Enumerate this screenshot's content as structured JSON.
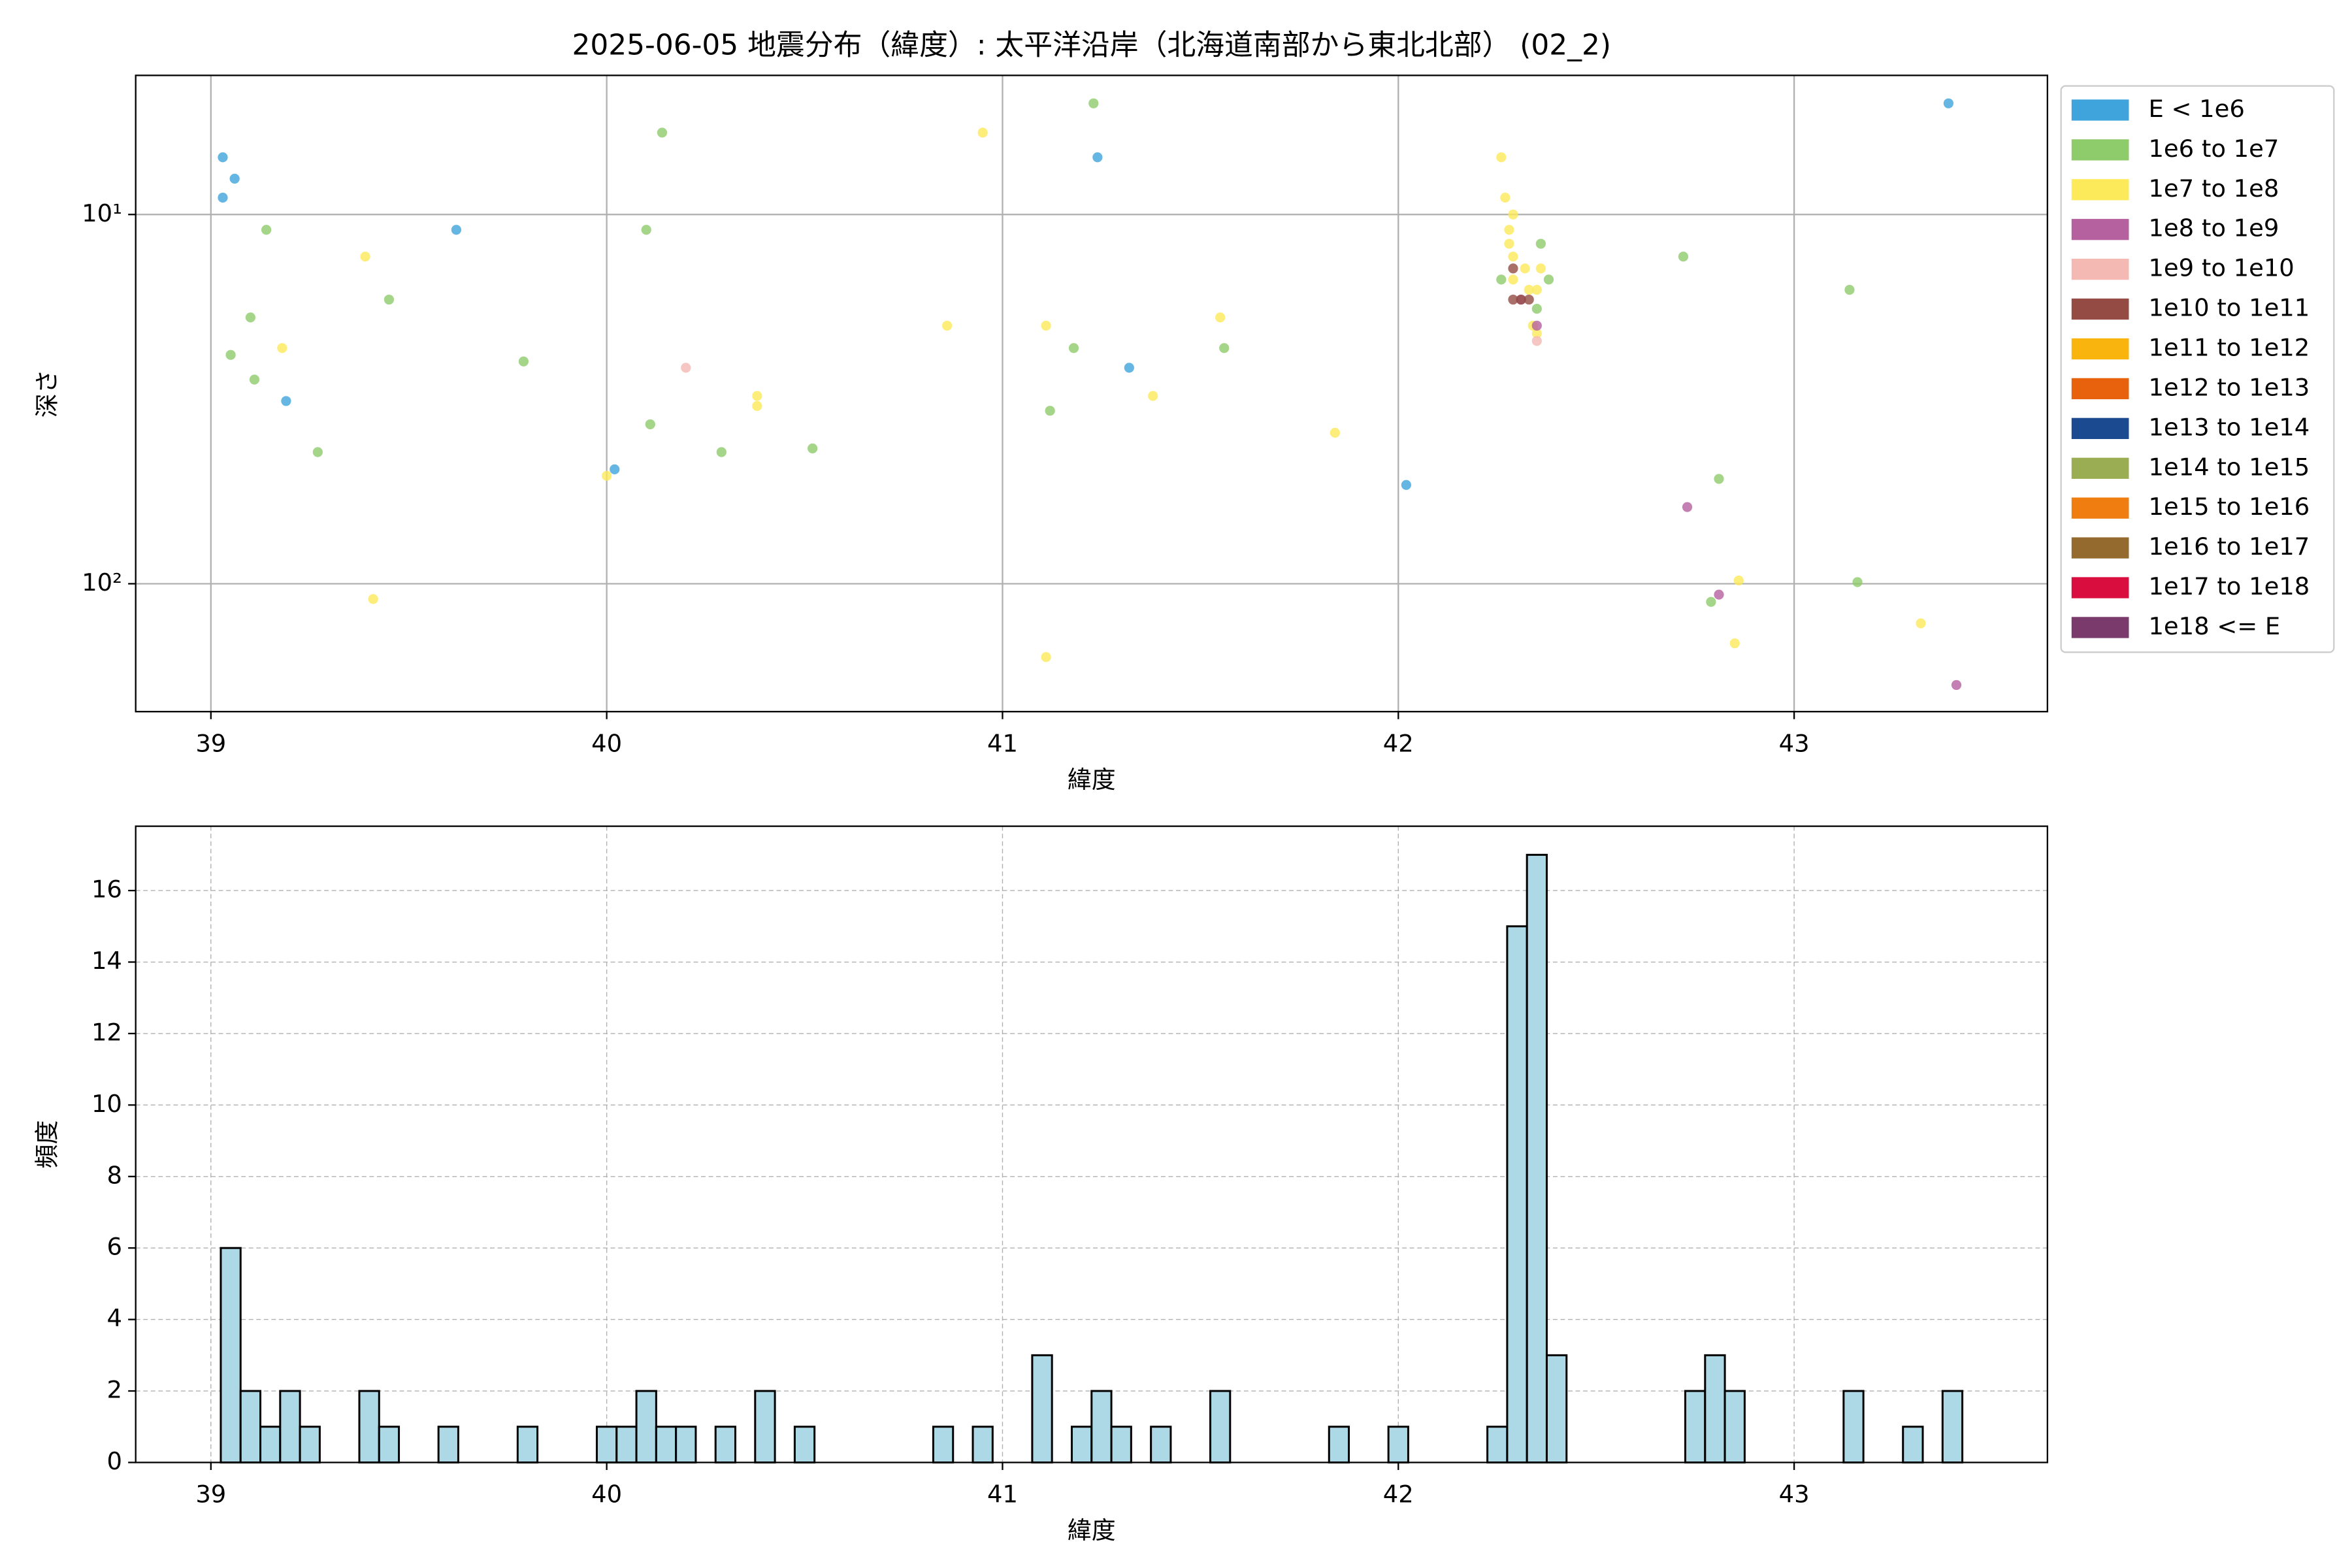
{
  "chart_data": [
    {
      "type": "scatter",
      "title": "2025-06-05 地震分布（緯度）: 太平洋沿岸（北海道南部から東北北部） (02_2)",
      "x_label": "緯度",
      "y_label": "深さ",
      "xlim": [
        38.81,
        43.64
      ],
      "xticks": [
        39,
        40,
        41,
        42,
        43
      ],
      "ylim": [
        4.2,
        222
      ],
      "yscale": "log",
      "invert_y": true,
      "yticks": [
        {
          "value": 10,
          "label": "10¹"
        },
        {
          "value": 100,
          "label": "10²"
        }
      ],
      "grid": true,
      "grid_linestyle": "solid",
      "legend": "outside-right",
      "series": [
        {
          "name": "E < 1e6",
          "color": "#3fa4dc",
          "x": [
            39.03,
            39.03,
            39.06,
            39.62,
            39.19,
            40.02,
            41.24,
            41.32,
            42.02,
            43.39
          ],
          "values": [
            7.0,
            9.0,
            8.0,
            11,
            32,
            49,
            7.0,
            26,
            54,
            5.0
          ]
        },
        {
          "name": "1e6 to 1e7",
          "color": "#8ecb6a",
          "x": [
            41.23,
            40.14,
            39.14,
            40.1,
            39.05,
            39.1,
            39.11,
            39.27,
            39.45,
            39.79,
            40.11,
            40.29,
            40.52,
            41.18,
            41.12,
            41.56,
            42.36,
            42.38,
            42.26,
            42.35,
            42.72,
            43.14,
            42.81,
            42.79,
            43.16
          ],
          "values": [
            5.0,
            6.0,
            11,
            11,
            24,
            19,
            28,
            44,
            17,
            25,
            37,
            44,
            43,
            23,
            34,
            23,
            12,
            15,
            15,
            18,
            13,
            16,
            52,
            112,
            99
          ]
        },
        {
          "name": "1e7 to 1e8",
          "color": "#fdea5a",
          "x": [
            40.95,
            42.26,
            42.27,
            42.29,
            42.28,
            42.28,
            42.29,
            42.32,
            42.36,
            42.29,
            42.33,
            42.35,
            42.34,
            42.35,
            39.39,
            39.18,
            40.86,
            41.11,
            41.55,
            40.38,
            40.38,
            41.38,
            41.84,
            40.0,
            39.41,
            41.11,
            42.86,
            42.85,
            43.32
          ],
          "values": [
            6.0,
            7.0,
            9.0,
            10,
            11,
            12,
            13,
            14,
            14,
            15,
            16,
            16,
            20,
            21,
            13,
            23,
            20,
            20,
            19,
            33,
            31,
            31,
            39,
            51,
            110,
            158,
            98,
            145,
            128
          ]
        },
        {
          "name": "1e8 to 1e9",
          "color": "#b5609f",
          "x": [
            42.35,
            42.73,
            42.81,
            43.41,
            42.31
          ],
          "values": [
            20,
            62,
            107,
            188,
            17
          ]
        },
        {
          "name": "1e9 to 1e10",
          "color": "#f4b9b3",
          "x": [
            40.2,
            42.35
          ],
          "values": [
            26,
            22
          ]
        },
        {
          "name": "1e10 to 1e11",
          "color": "#934b44",
          "x": [
            42.29,
            42.31,
            42.29,
            42.33
          ],
          "values": [
            14,
            17,
            17,
            17
          ]
        },
        {
          "name": "1e11 to 1e12",
          "color": "#f9b50d",
          "x": [],
          "values": []
        },
        {
          "name": "1e12 to 1e13",
          "color": "#e8620e",
          "x": [],
          "values": []
        },
        {
          "name": "1e13 to 1e14",
          "color": "#1b4a91",
          "x": [],
          "values": []
        },
        {
          "name": "1e14 to 1e15",
          "color": "#9aad52",
          "x": [],
          "values": []
        },
        {
          "name": "1e15 to 1e16",
          "color": "#f07d0f",
          "x": [],
          "values": []
        },
        {
          "name": "1e16 to 1e17",
          "color": "#946a2e",
          "x": [],
          "values": []
        },
        {
          "name": "1e17 to 1e18",
          "color": "#d90d3e",
          "x": [],
          "values": []
        },
        {
          "name": "1e18 <= E",
          "color": "#7a3a6c",
          "x": [],
          "values": []
        }
      ]
    },
    {
      "type": "histogram",
      "x_label": "緯度",
      "y_label": "頻度",
      "color": "#add8e6",
      "xlim": [
        38.81,
        43.64
      ],
      "xticks": [
        39,
        40,
        41,
        42,
        43
      ],
      "ylim": [
        0,
        17.8
      ],
      "yticks": [
        0,
        2,
        4,
        6,
        8,
        10,
        12,
        14,
        16
      ],
      "grid": true,
      "grid_linestyle": "dashed",
      "bins": [
        39.025,
        39.075,
        39.125,
        39.175,
        39.225,
        39.275,
        39.325,
        39.375,
        39.425,
        39.475,
        39.525,
        39.575,
        39.625,
        39.675,
        39.725,
        39.775,
        39.825,
        39.875,
        39.925,
        39.975,
        40.025,
        40.075,
        40.125,
        40.175,
        40.225,
        40.275,
        40.325,
        40.375,
        40.425,
        40.475,
        40.525,
        40.575,
        40.625,
        40.675,
        40.725,
        40.775,
        40.825,
        40.875,
        40.925,
        40.975,
        41.025,
        41.075,
        41.125,
        41.175,
        41.225,
        41.275,
        41.325,
        41.375,
        41.425,
        41.475,
        41.525,
        41.575,
        41.625,
        41.675,
        41.725,
        41.775,
        41.825,
        41.875,
        41.925,
        41.975,
        42.025,
        42.075,
        42.125,
        42.175,
        42.225,
        42.275,
        42.325,
        42.375,
        42.425,
        42.475,
        42.525,
        42.575,
        42.625,
        42.675,
        42.725,
        42.775,
        42.825,
        42.875,
        42.925,
        42.975,
        43.025,
        43.075,
        43.125,
        43.175,
        43.225,
        43.275,
        43.325,
        43.375,
        43.425
      ],
      "values": [
        6,
        2,
        1,
        2,
        1,
        0,
        0,
        2,
        1,
        0,
        0,
        1,
        0,
        0,
        0,
        1,
        0,
        0,
        0,
        1,
        1,
        2,
        1,
        1,
        0,
        1,
        0,
        2,
        0,
        1,
        0,
        0,
        0,
        0,
        0,
        0,
        1,
        0,
        1,
        0,
        0,
        3,
        0,
        1,
        2,
        1,
        0,
        1,
        0,
        0,
        2,
        0,
        0,
        0,
        0,
        0,
        1,
        0,
        0,
        1,
        0,
        0,
        0,
        0,
        1,
        15,
        17,
        3,
        0,
        0,
        0,
        0,
        0,
        0,
        2,
        3,
        2,
        0,
        0,
        0,
        0,
        0,
        2,
        0,
        0,
        1,
        0,
        2
      ]
    }
  ]
}
